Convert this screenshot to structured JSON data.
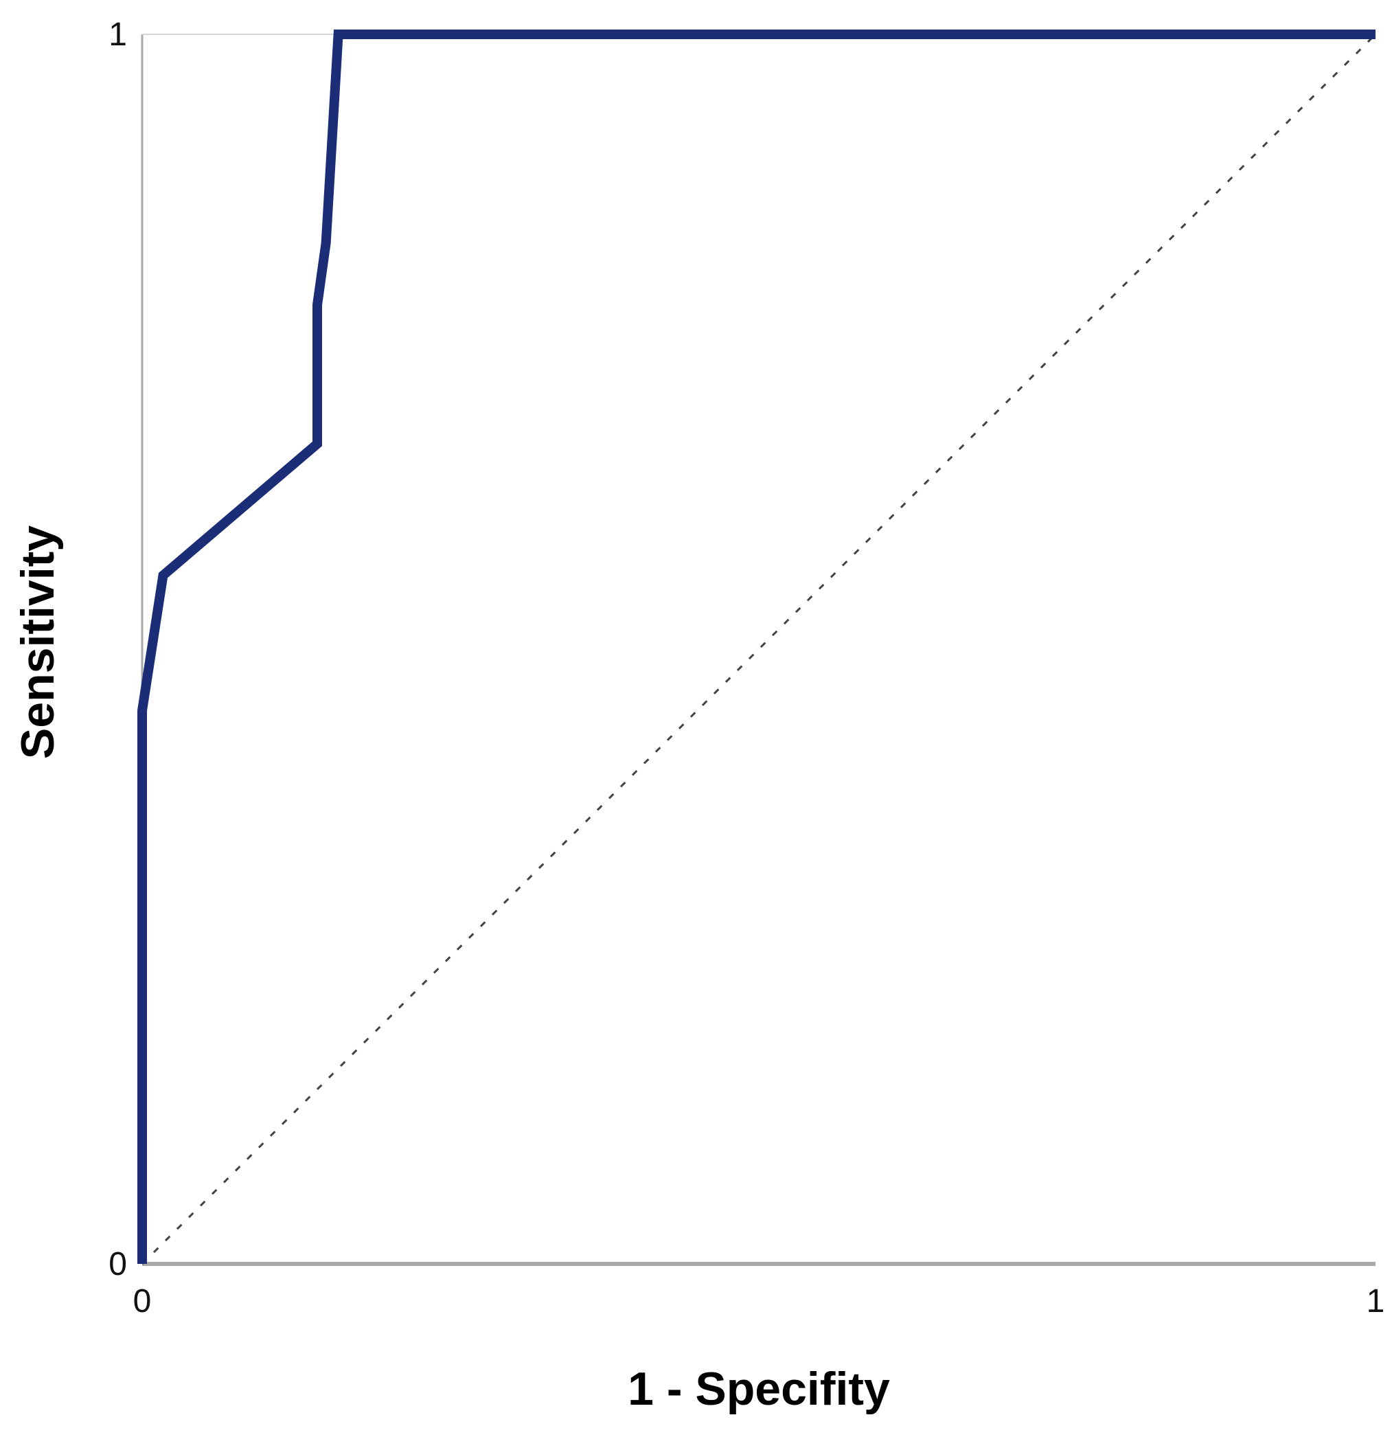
{
  "chart_data": {
    "type": "line",
    "title": "",
    "xlabel": "1 - Specifity",
    "ylabel": "Sensitivity",
    "xlim": [
      0,
      1
    ],
    "ylim": [
      0,
      1
    ],
    "x_ticks": [
      "0",
      "1"
    ],
    "y_ticks": [
      "0",
      "1"
    ],
    "grid": false,
    "series": [
      {
        "kind": "roc-curve",
        "color": "#1c2d78",
        "x": [
          0.0,
          0.0,
          0.017,
          0.142,
          0.142,
          0.149,
          0.159,
          1.0
        ],
        "y": [
          0.0,
          0.45,
          0.56,
          0.667,
          0.78,
          0.83,
          1.0,
          1.0
        ]
      },
      {
        "kind": "reference-diagonal",
        "color": "#444444",
        "dashed": true,
        "x": [
          0.0,
          1.0
        ],
        "y": [
          0.0,
          1.0
        ]
      }
    ],
    "colors": {
      "axis": "#a9a9a9",
      "roc": "#1c2d78",
      "diagonal": "#444444"
    }
  }
}
